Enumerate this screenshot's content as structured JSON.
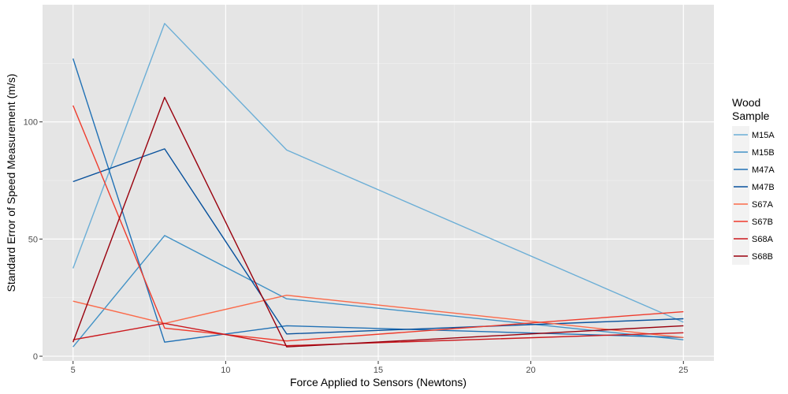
{
  "chart_data": {
    "type": "line",
    "xlabel": "Force Applied to Sensors (Newtons)",
    "ylabel": "Standard Error of Speed Measurement (m/s)",
    "xlim": [
      4,
      26
    ],
    "ylim": [
      -2,
      150
    ],
    "x_ticks": [
      5,
      10,
      15,
      20,
      25
    ],
    "y_ticks": [
      0,
      50,
      100
    ],
    "grid": true,
    "legend": {
      "title_lines": [
        "Wood",
        "Sample"
      ],
      "placement": "right"
    },
    "series": [
      {
        "name": "M15A",
        "color": "#6baed6",
        "x": [
          5,
          8,
          12,
          25
        ],
        "y": [
          37.5,
          142,
          88,
          14.5
        ]
      },
      {
        "name": "M15B",
        "color": "#4292c6",
        "x": [
          5,
          8,
          12,
          25
        ],
        "y": [
          4,
          51.5,
          24.5,
          7
        ]
      },
      {
        "name": "M47A",
        "color": "#2171b5",
        "x": [
          5,
          8,
          12,
          25
        ],
        "y": [
          127,
          6,
          13,
          8
        ]
      },
      {
        "name": "M47B",
        "color": "#08519c",
        "x": [
          5,
          8,
          12,
          25
        ],
        "y": [
          74.5,
          88.5,
          9.5,
          16
        ]
      },
      {
        "name": "S67A",
        "color": "#fb6a4a",
        "x": [
          5,
          8,
          12,
          25
        ],
        "y": [
          23.5,
          14,
          26,
          8
        ]
      },
      {
        "name": "S67B",
        "color": "#ef3b2c",
        "x": [
          5,
          8,
          12,
          25
        ],
        "y": [
          107,
          12,
          6.5,
          19
        ]
      },
      {
        "name": "S68A",
        "color": "#cb181d",
        "x": [
          5,
          8,
          12,
          25
        ],
        "y": [
          7,
          14,
          4.5,
          10
        ]
      },
      {
        "name": "S68B",
        "color": "#99000d",
        "x": [
          5,
          8,
          12,
          25
        ],
        "y": [
          6,
          110.5,
          4,
          13
        ]
      }
    ]
  }
}
